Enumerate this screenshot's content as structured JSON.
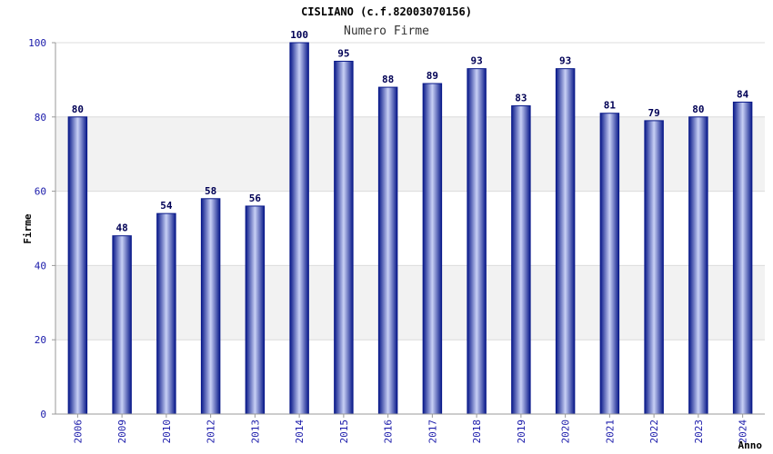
{
  "chart_data": {
    "type": "bar",
    "title": "CISLIANO (c.f.82003070156)",
    "subtitle": "Numero Firme",
    "xlabel": "Anno",
    "ylabel": "Firme",
    "ylim": [
      0,
      100
    ],
    "yticks": [
      0,
      20,
      40,
      60,
      80,
      100
    ],
    "grid": true,
    "categories": [
      "2006",
      "2009",
      "2010",
      "2012",
      "2013",
      "2014",
      "2015",
      "2016",
      "2017",
      "2018",
      "2019",
      "2020",
      "2021",
      "2022",
      "2023",
      "2024"
    ],
    "values": [
      80,
      48,
      54,
      58,
      56,
      100,
      95,
      88,
      89,
      93,
      83,
      93,
      81,
      79,
      80,
      84
    ]
  },
  "colors": {
    "bar_dark": "#0a1a8a",
    "bar_light": "#c8d0f5",
    "tick_label": "#1a1aaa",
    "value_label": "#000055",
    "band": "#f2f2f2",
    "grid": "#dcdcdc",
    "axis": "#999999"
  }
}
